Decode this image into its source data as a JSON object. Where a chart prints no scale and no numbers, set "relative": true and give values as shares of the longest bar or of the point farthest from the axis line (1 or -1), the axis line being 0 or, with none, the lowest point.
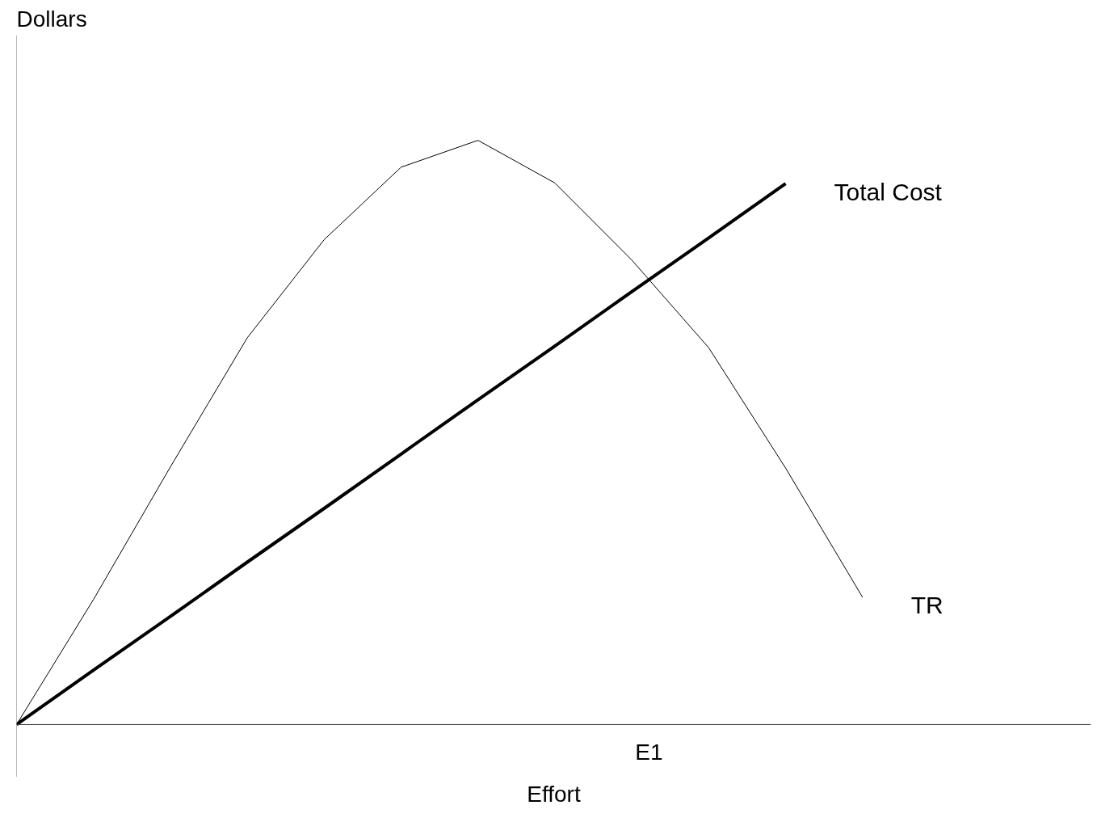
{
  "chart_data": {
    "type": "line",
    "relative": true,
    "xlabel": "Effort",
    "ylabel": "Dollars",
    "annotations": [
      "E1"
    ],
    "grid": false,
    "marker": "none",
    "line_style": "solid",
    "categories": [
      null,
      null,
      null,
      null,
      null,
      null,
      null,
      null,
      null,
      null,
      null,
      null
    ],
    "series": [
      {
        "name": "Total Cost",
        "color": "#000000",
        "values": [
          0,
          0.093,
          0.185,
          0.278,
          0.37,
          0.463,
          0.556,
          0.648,
          0.741,
          0.833,
          0.926,
          null
        ]
      },
      {
        "name": "TR",
        "color": "#000000",
        "values": [
          0,
          0.214,
          0.441,
          0.662,
          0.83,
          0.954,
          1.0,
          0.927,
          0.795,
          0.645,
          0.439,
          0.218
        ]
      }
    ]
  }
}
